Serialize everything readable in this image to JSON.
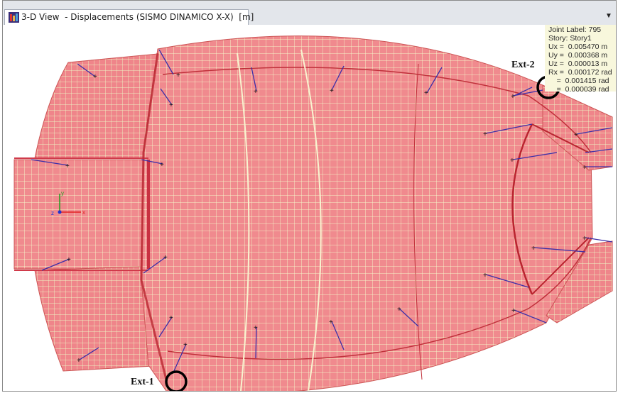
{
  "window": {
    "tab_title": "3-D View  - Displacements (SISMO DINAMICO X-X)  [m]",
    "dropdown_icon": "chevron-down-icon"
  },
  "joint_info": {
    "label": "Joint Label: 795",
    "story": "Story: Story1",
    "ux": "Ux =  0.005470 m",
    "uy": "Uy =  0.000368 m",
    "uz": "Uz =  0.000013 m",
    "rx": "Rx =  0.000172 rad",
    "ry": "    =  0.001415 rad",
    "rz": "    =  0.000039 rad"
  },
  "annotations": {
    "ext2": "Ext-2",
    "ext1": "Ext-1"
  },
  "colors": {
    "mesh_fill": "#f08a8e",
    "mesh_grid": "#f2f7c8",
    "frame_line": "#3b2fa8",
    "info_bg": "#f8f7dc",
    "tab_bar": "#e3e6eb"
  }
}
